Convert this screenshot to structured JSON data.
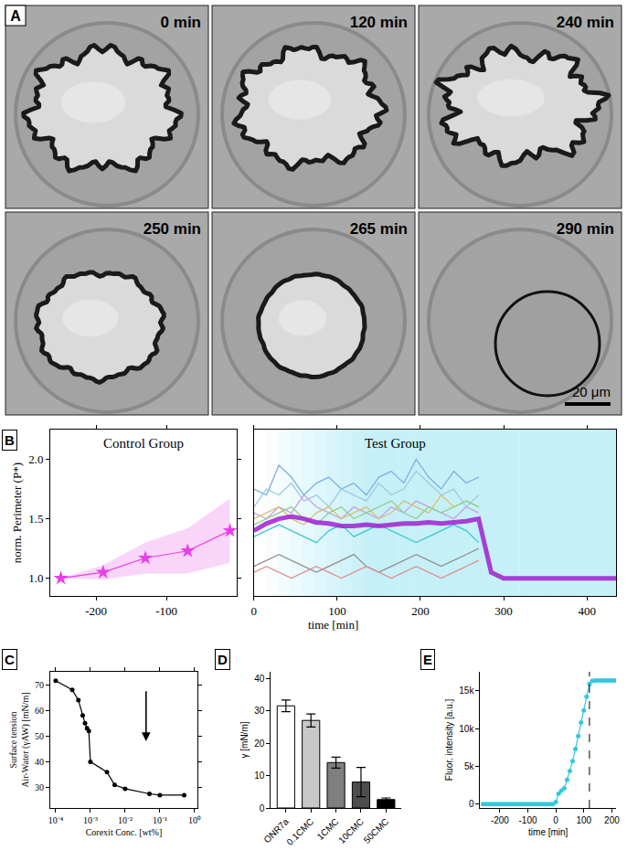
{
  "images": {
    "label": "A",
    "frames": [
      "0 min",
      "120 min",
      "240 min",
      "250 min",
      "265 min",
      "290 min"
    ],
    "scale_bar": "20 μm"
  },
  "chart_data": [
    {
      "label": "B",
      "type": "line",
      "title": "Control Group",
      "x": [
        -250,
        -190,
        -130,
        -70,
        -10
      ],
      "series": [
        {
          "values": [
            1.0,
            1.05,
            1.17,
            1.23,
            1.4
          ],
          "upper": [
            1.0,
            1.11,
            1.3,
            1.42,
            1.67
          ],
          "lower": [
            1.0,
            0.99,
            1.04,
            1.04,
            1.13
          ],
          "color": "#e83ee8",
          "marker": "star"
        }
      ],
      "xlim": [
        -265,
        0
      ],
      "xticks": [
        -200,
        -100
      ],
      "ylim": [
        0.85,
        2.25
      ],
      "yticks": [
        {
          "value": 1,
          "label": "1.0"
        },
        {
          "value": 1.5,
          "label": "1.5"
        },
        {
          "value": 2,
          "label": "2.0"
        }
      ],
      "y_label": "norm. Perimeter (P*)"
    },
    {
      "type": "line",
      "title": "Test Group",
      "x": [
        0,
        15,
        30,
        45,
        60,
        75,
        90,
        105,
        120,
        135,
        150,
        165,
        180,
        195,
        210,
        225,
        240,
        255,
        270,
        285,
        300,
        315,
        330,
        345,
        360,
        375,
        390,
        405,
        420,
        435
      ],
      "series": [
        {
          "color": "#7fb0e0",
          "values": [
            1.75,
            1.7,
            1.95,
            1.85,
            1.7,
            1.8,
            1.85,
            1.75,
            1.8,
            1.7,
            1.85,
            1.9,
            1.8,
            2.0,
            1.85,
            1.75,
            1.9,
            1.8,
            1.85,
            null,
            null,
            null,
            null,
            null,
            null,
            null,
            null,
            null,
            null,
            null
          ]
        },
        {
          "color": "#9ecae1",
          "values": [
            1.6,
            1.75,
            1.7,
            1.8,
            1.65,
            1.7,
            1.6,
            1.75,
            1.7,
            1.65,
            1.8,
            1.7,
            1.75,
            1.9,
            1.8,
            1.7,
            1.75,
            1.6,
            1.7,
            null,
            null,
            null,
            null,
            null,
            null,
            null,
            null,
            null,
            null,
            null
          ]
        },
        {
          "color": "#c9a0e0",
          "values": [
            1.55,
            1.5,
            1.6,
            1.55,
            1.7,
            1.6,
            1.55,
            1.5,
            1.6,
            1.55,
            1.5,
            1.6,
            1.55,
            1.65,
            1.6,
            1.55,
            1.5,
            1.6,
            1.55,
            null,
            null,
            null,
            null,
            null,
            null,
            null,
            null,
            null,
            null,
            null
          ]
        },
        {
          "color": "#d9c070",
          "values": [
            1.5,
            1.55,
            1.6,
            1.5,
            1.45,
            1.55,
            1.6,
            1.5,
            1.55,
            1.6,
            1.5,
            1.55,
            1.65,
            1.6,
            1.55,
            1.7,
            1.6,
            1.65,
            1.6,
            null,
            null,
            null,
            null,
            null,
            null,
            null,
            null,
            null,
            null,
            null
          ]
        },
        {
          "color": "#8fd08f",
          "values": [
            1.45,
            1.5,
            1.55,
            1.6,
            1.5,
            1.45,
            1.55,
            1.6,
            1.5,
            1.55,
            1.6,
            1.65,
            1.55,
            1.5,
            1.6,
            1.55,
            1.6,
            1.65,
            1.6,
            null,
            null,
            null,
            null,
            null,
            null,
            null,
            null,
            null,
            null,
            null
          ]
        },
        {
          "color": "#40c8d0",
          "values": [
            1.35,
            1.4,
            1.45,
            1.4,
            1.35,
            1.3,
            1.4,
            1.45,
            1.35,
            1.4,
            1.45,
            1.4,
            1.35,
            1.3,
            1.35,
            1.4,
            1.45,
            1.4,
            1.3,
            null,
            null,
            null,
            null,
            null,
            null,
            null,
            null,
            null,
            null,
            null
          ]
        },
        {
          "color": "#909090",
          "values": [
            1.1,
            1.15,
            1.2,
            1.15,
            1.1,
            1.05,
            1.1,
            1.15,
            1.2,
            1.1,
            1.05,
            1.1,
            1.15,
            1.2,
            1.15,
            1.1,
            1.15,
            1.2,
            1.25,
            null,
            null,
            null,
            null,
            null,
            null,
            null,
            null,
            null,
            null,
            null
          ]
        },
        {
          "color": "#e09090",
          "values": [
            1.05,
            1.1,
            1.05,
            1.0,
            1.05,
            1.1,
            1.05,
            1.0,
            1.05,
            1.1,
            1.05,
            1.0,
            1.05,
            1.1,
            1.05,
            1.0,
            1.05,
            1.1,
            1.15,
            null,
            null,
            null,
            null,
            null,
            null,
            null,
            null,
            null,
            null,
            null
          ]
        },
        {
          "color": "#a020d0",
          "line_style": "thick",
          "values": [
            1.4,
            1.46,
            1.5,
            1.52,
            1.5,
            1.47,
            1.46,
            1.44,
            1.44,
            1.45,
            1.44,
            1.45,
            1.46,
            1.46,
            1.47,
            1.46,
            1.47,
            1.48,
            1.5,
            1.05,
            1.0,
            1.0,
            1.0,
            1.0,
            1.0,
            1.0,
            1.0,
            1.0,
            1.0,
            1.0
          ]
        }
      ],
      "xlim": [
        0,
        435
      ],
      "xticks": [
        0,
        100,
        200,
        300,
        400
      ],
      "ylim": [
        0.85,
        2.25
      ],
      "x_label": "time [min]"
    },
    {
      "label": "C",
      "type": "line",
      "x": [
        0.0001,
        0.0003,
        0.00045,
        0.0006,
        0.0007,
        0.0008,
        0.0009,
        0.001,
        0.003,
        0.005,
        0.01,
        0.05,
        0.1,
        0.5
      ],
      "series": [
        {
          "values": [
            71.5,
            68,
            64,
            58,
            55,
            53,
            52,
            40,
            36,
            31,
            29.5,
            27.5,
            27,
            27
          ],
          "color": "#000000",
          "marker": "circle"
        }
      ],
      "log": "x",
      "xlim": [
        7e-05,
        1.2
      ],
      "xticks": [
        {
          "value": 0.0001,
          "label": "10⁻⁴"
        },
        {
          "value": 0.001,
          "label": "10⁻³"
        },
        {
          "value": 0.01,
          "label": "10⁻²"
        },
        {
          "value": 0.1,
          "label": "10⁻¹"
        },
        {
          "value": 1,
          "label": "10⁰"
        }
      ],
      "ylim": [
        22,
        75
      ],
      "yticks": [
        30,
        40,
        50,
        60,
        70
      ],
      "x_label": "Corexit Conc. [wt%]",
      "y_label": "Surface tension Air-Water (γAW) [mN/m]",
      "arrow": {
        "x": 0.04,
        "y_from": 68,
        "y_to": 48
      }
    },
    {
      "label": "D",
      "type": "bar",
      "categories": [
        "ONR7a",
        "0.1CMC",
        "1CMC",
        "10CMC",
        "50CMC"
      ],
      "values": [
        31.5,
        27,
        14,
        8,
        2.6
      ],
      "errors": [
        1.8,
        2.0,
        1.7,
        4.5,
        0.5
      ],
      "colors": [
        "#ffffff",
        "#c8c8c8",
        "#7f7f7f",
        "#4d4d4d",
        "#000000"
      ],
      "ylim": [
        0,
        42
      ],
      "yticks": [
        0,
        10,
        20,
        30,
        40
      ],
      "y_label": "γ [mN/m]"
    },
    {
      "label": "E",
      "type": "line",
      "x": [
        -260,
        -250,
        -240,
        -230,
        -220,
        -210,
        -200,
        -190,
        -180,
        -170,
        -160,
        -150,
        -140,
        -130,
        -120,
        -110,
        -100,
        -90,
        -80,
        -70,
        -60,
        -50,
        -40,
        -30,
        -20,
        -10,
        0,
        10,
        20,
        30,
        40,
        50,
        60,
        70,
        80,
        90,
        100,
        110,
        120,
        130,
        140,
        150,
        160,
        170,
        180,
        190,
        200,
        210
      ],
      "series": [
        {
          "values": [
            0,
            0,
            0,
            0,
            0,
            0,
            0,
            0,
            0,
            0,
            0,
            0,
            0,
            0,
            0,
            0,
            0,
            0,
            0,
            0,
            0,
            0,
            0,
            0,
            0,
            0,
            300,
            1400,
            1800,
            2100,
            3200,
            4400,
            5700,
            7300,
            9000,
            10800,
            12400,
            14200,
            15900,
            16300,
            16350,
            16350,
            16350,
            16350,
            16350,
            16350,
            16350,
            16350
          ],
          "color": "#35c6dc",
          "marker": "circle"
        }
      ],
      "xlim": [
        -270,
        215
      ],
      "xticks": [
        -200,
        -100,
        0,
        100,
        200
      ],
      "ylim": [
        -500,
        17500
      ],
      "yticks": [
        0,
        {
          "value": 5000,
          "label": "5k"
        },
        {
          "value": 10000,
          "label": "10k"
        },
        {
          "value": 15000,
          "label": "15k"
        }
      ],
      "x_label": "time [min]",
      "y_label": "Fluor. intensity [a.u.]",
      "reference_line": {
        "x": 120,
        "line_style": "dashed"
      }
    }
  ]
}
